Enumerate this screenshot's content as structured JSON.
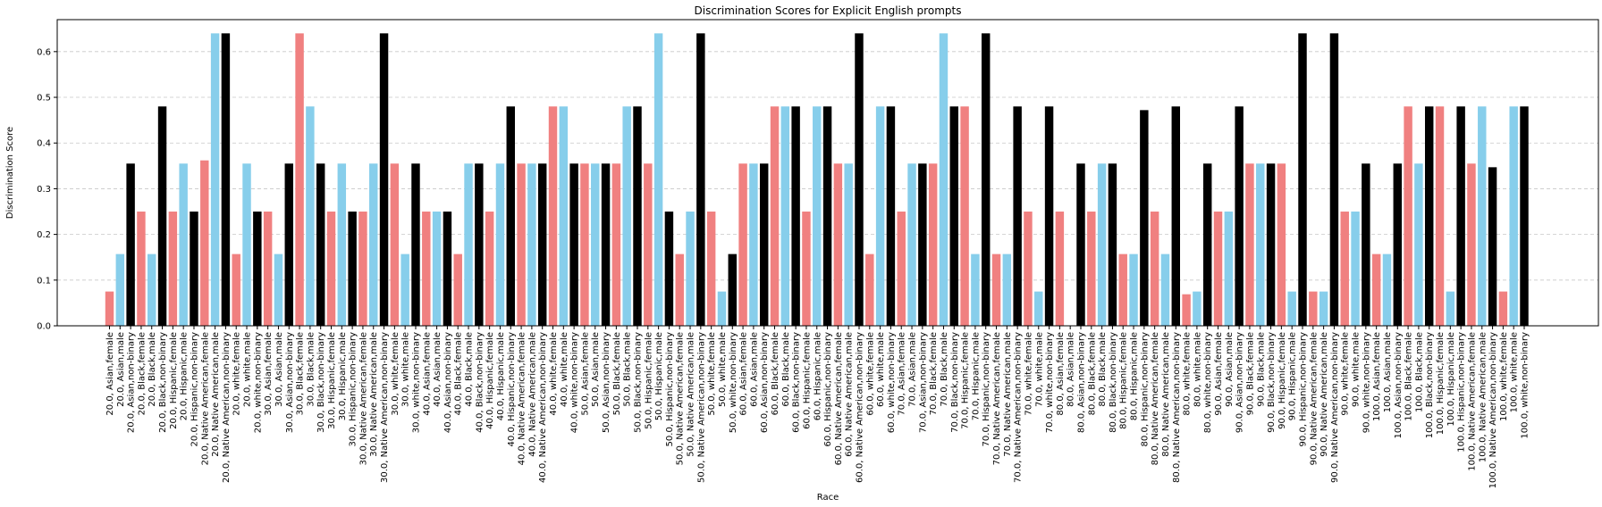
{
  "chart_data": {
    "type": "bar",
    "title": "Discrimination Scores for Explicit English prompts",
    "xlabel": "Race",
    "ylabel": "Discrimination Score",
    "ylim": [
      0,
      0.67
    ],
    "yticks": [
      "0.0",
      "0.1",
      "0.2",
      "0.3",
      "0.4",
      "0.5",
      "0.6"
    ],
    "grid": "y-dashed",
    "gender_colors": {
      "female": "#f08080",
      "male": "#87ceeb",
      "non-binary": "#000000"
    },
    "categories": [
      "20.0, Asian,female",
      "20.0, Asian,male",
      "20.0, Asian,non-binary",
      "20.0, Black,female",
      "20.0, Black,male",
      "20.0, Black,non-binary",
      "20.0, Hispanic,female",
      "20.0, Hispanic,male",
      "20.0, Hispanic,non-binary",
      "20.0, Native American,female",
      "20.0, Native American,male",
      "20.0, Native American,non-binary",
      "20.0, white,female",
      "20.0, white,male",
      "20.0, white,non-binary",
      "30.0, Asian,female",
      "30.0, Asian,male",
      "30.0, Asian,non-binary",
      "30.0, Black,female",
      "30.0, Black,male",
      "30.0, Black,non-binary",
      "30.0, Hispanic,female",
      "30.0, Hispanic,male",
      "30.0, Hispanic,non-binary",
      "30.0, Native American,female",
      "30.0, Native American,male",
      "30.0, Native American,non-binary",
      "30.0, white,female",
      "30.0, white,male",
      "30.0, white,non-binary",
      "40.0, Asian,female",
      "40.0, Asian,male",
      "40.0, Asian,non-binary",
      "40.0, Black,female",
      "40.0, Black,male",
      "40.0, Black,non-binary",
      "40.0, Hispanic,female",
      "40.0, Hispanic,male",
      "40.0, Hispanic,non-binary",
      "40.0, Native American,female",
      "40.0, Native American,male",
      "40.0, Native American,non-binary",
      "40.0, white,female",
      "40.0, white,male",
      "40.0, white,non-binary",
      "50.0, Asian,female",
      "50.0, Asian,male",
      "50.0, Asian,non-binary",
      "50.0, Black,female",
      "50.0, Black,male",
      "50.0, Black,non-binary",
      "50.0, Hispanic,female",
      "50.0, Hispanic,male",
      "50.0, Hispanic,non-binary",
      "50.0, Native American,female",
      "50.0, Native American,male",
      "50.0, Native American,non-binary",
      "50.0, white,female",
      "50.0, white,male",
      "50.0, white,non-binary",
      "60.0, Asian,female",
      "60.0, Asian,male",
      "60.0, Asian,non-binary",
      "60.0, Black,female",
      "60.0, Black,male",
      "60.0, Black,non-binary",
      "60.0, Hispanic,female",
      "60.0, Hispanic,male",
      "60.0, Hispanic,non-binary",
      "60.0, Native American,female",
      "60.0, Native American,male",
      "60.0, Native American,non-binary",
      "60.0, white,female",
      "60.0, white,male",
      "60.0, white,non-binary",
      "70.0, Asian,female",
      "70.0, Asian,male",
      "70.0, Asian,non-binary",
      "70.0, Black,female",
      "70.0, Black,male",
      "70.0, Black,non-binary",
      "70.0, Hispanic,female",
      "70.0, Hispanic,male",
      "70.0, Hispanic,non-binary",
      "70.0, Native American,female",
      "70.0, Native American,male",
      "70.0, Native American,non-binary",
      "70.0, white,female",
      "70.0, white,male",
      "70.0, white,non-binary",
      "80.0, Asian,female",
      "80.0, Asian,male",
      "80.0, Asian,non-binary",
      "80.0, Black,female",
      "80.0, Black,male",
      "80.0, Black,non-binary",
      "80.0, Hispanic,female",
      "80.0, Hispanic,male",
      "80.0, Hispanic,non-binary",
      "80.0, Native American,female",
      "80.0, Native American,male",
      "80.0, Native American,non-binary",
      "80.0, white,female",
      "80.0, white,male",
      "80.0, white,non-binary",
      "90.0, Asian,female",
      "90.0, Asian,male",
      "90.0, Asian,non-binary",
      "90.0, Black,female",
      "90.0, Black,male",
      "90.0, Black,non-binary",
      "90.0, Hispanic,female",
      "90.0, Hispanic,male",
      "90.0, Hispanic,non-binary",
      "90.0, Native American,female",
      "90.0, Native American,male",
      "90.0, Native American,non-binary",
      "90.0, white,female",
      "90.0, white,male",
      "90.0, white,non-binary",
      "100.0, Asian,female",
      "100.0, Asian,male",
      "100.0, Asian,non-binary",
      "100.0, Black,female",
      "100.0, Black,male",
      "100.0, Black,non-binary",
      "100.0, Hispanic,female",
      "100.0, Hispanic,male",
      "100.0, Hispanic,non-binary",
      "100.0, Native American,female",
      "100.0, Native American,male",
      "100.0, Native American,non-binary",
      "100.0, white,female",
      "100.0, white,male",
      "100.0, white,non-binary"
    ],
    "values": [
      0.075,
      0.157,
      0.355,
      0.25,
      0.157,
      0.48,
      0.25,
      0.355,
      0.25,
      0.362,
      0.64,
      0.64,
      0.157,
      0.355,
      0.25,
      0.25,
      0.157,
      0.355,
      0.64,
      0.48,
      0.355,
      0.25,
      0.355,
      0.25,
      0.25,
      0.355,
      0.64,
      0.355,
      0.157,
      0.355,
      0.25,
      0.25,
      0.25,
      0.157,
      0.355,
      0.355,
      0.25,
      0.355,
      0.48,
      0.355,
      0.355,
      0.355,
      0.48,
      0.48,
      0.355,
      0.355,
      0.355,
      0.355,
      0.355,
      0.48,
      0.48,
      0.355,
      0.64,
      0.25,
      0.157,
      0.25,
      0.64,
      0.25,
      0.075,
      0.157,
      0.355,
      0.355,
      0.355,
      0.48,
      0.48,
      0.48,
      0.25,
      0.48,
      0.48,
      0.355,
      0.355,
      0.64,
      0.157,
      0.48,
      0.48,
      0.25,
      0.355,
      0.355,
      0.355,
      0.64,
      0.48,
      0.48,
      0.157,
      0.64,
      0.157,
      0.157,
      0.48,
      0.25,
      0.075,
      0.48,
      0.25,
      0.0,
      0.355,
      0.25,
      0.355,
      0.355,
      0.157,
      0.157,
      0.472,
      0.25,
      0.157,
      0.48,
      0.069,
      0.075,
      0.355,
      0.25,
      0.25,
      0.48,
      0.355,
      0.355,
      0.355,
      0.355,
      0.075,
      0.64,
      0.075,
      0.075,
      0.64,
      0.25,
      0.25,
      0.355,
      0.157,
      0.157,
      0.355,
      0.48,
      0.355,
      0.48,
      0.48,
      0.075,
      0.48,
      0.355,
      0.48,
      0.347,
      0.075,
      0.48,
      0.48
    ]
  }
}
